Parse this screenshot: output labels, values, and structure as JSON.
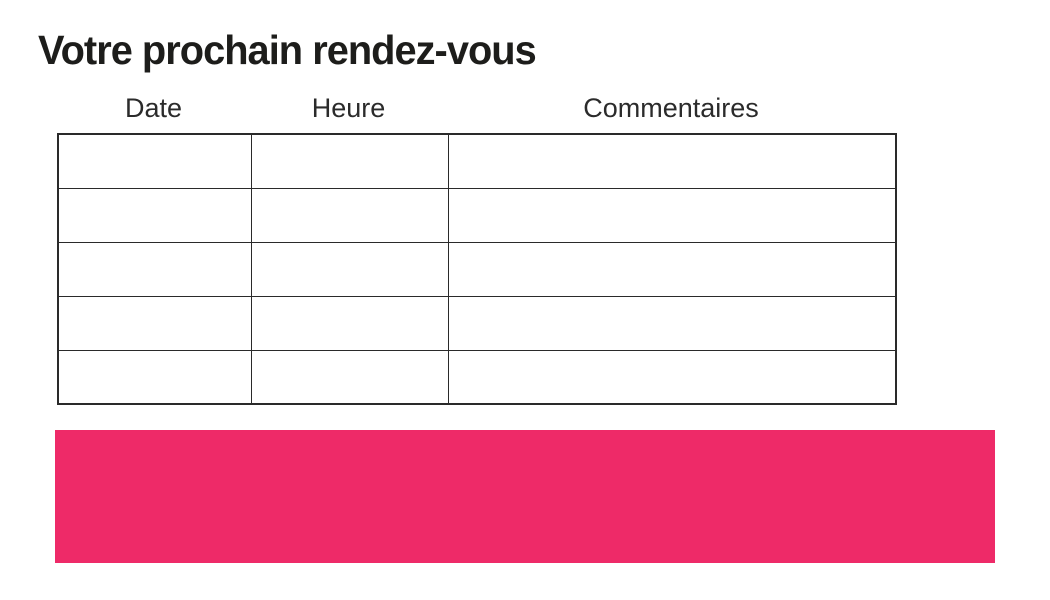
{
  "page": {
    "title": "Votre prochain rendez-vous"
  },
  "table": {
    "headers": [
      "Date",
      "Heure",
      "Commentaires"
    ],
    "rows": [
      [
        "",
        "",
        ""
      ],
      [
        "",
        "",
        ""
      ],
      [
        "",
        "",
        ""
      ],
      [
        "",
        "",
        ""
      ],
      [
        "",
        "",
        ""
      ]
    ]
  },
  "banner": {
    "text": ""
  },
  "colors": {
    "title_text": "#1d1d1b",
    "header_text": "#2b2b2b",
    "table_border": "#2a2a2a",
    "banner_pink": "#ee2a68",
    "page_bg": "#ffffff"
  }
}
